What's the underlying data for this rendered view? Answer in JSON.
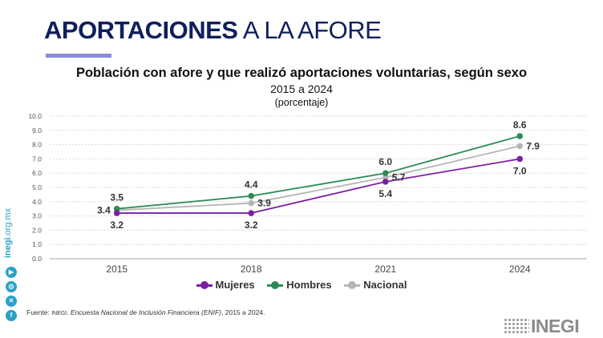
{
  "header": {
    "title_bold": "APORTACIONES",
    "title_rest": " A LA AFORE"
  },
  "chart_data": {
    "type": "line",
    "title": "Población con afore y que realizó aportaciones voluntarias, según sexo",
    "subtitle": "2015 a 2024",
    "unit": "(porcentaje)",
    "categories": [
      "2015",
      "2018",
      "2021",
      "2024"
    ],
    "ylim": [
      0,
      10
    ],
    "yticks": [
      "0.0",
      "1.0",
      "2.0",
      "3.0",
      "4.0",
      "5.0",
      "6.0",
      "7.0",
      "8.0",
      "9.0",
      "10.0"
    ],
    "grid": true,
    "legend_position": "bottom",
    "series": [
      {
        "name": "Mujeres",
        "color": "#7b1fa2",
        "values": [
          3.2,
          3.2,
          5.4,
          7.0
        ],
        "labels": [
          "3.2",
          "3.2",
          "5.4",
          "7.0"
        ],
        "label_pos": [
          "below",
          "below",
          "below",
          "below"
        ]
      },
      {
        "name": "Hombres",
        "color": "#2e8b57",
        "values": [
          3.5,
          4.4,
          6.0,
          8.6
        ],
        "labels": [
          "3.5",
          "4.4",
          "6.0",
          "8.6"
        ],
        "label_pos": [
          "above",
          "above",
          "above",
          "above"
        ]
      },
      {
        "name": "Nacional",
        "color": "#b5b5b5",
        "values": [
          3.4,
          3.9,
          5.7,
          7.9
        ],
        "labels": [
          "3.4",
          "3.9",
          "5.7",
          "7.9"
        ],
        "label_pos": [
          "left",
          "right",
          "right",
          "right"
        ]
      }
    ]
  },
  "footer": {
    "source_prefix": "Fuente: ",
    "source_org": "INEGI",
    "source_sep": ". ",
    "source_title": "Encuesta Nacional de Inclusión Financiera (ENIF)",
    "source_suffix": ", 2015 a 2024."
  },
  "sidebar": {
    "site_bold": "inegi",
    "site_rest": ".org.mx",
    "icons": [
      "youtube-icon",
      "instagram-icon",
      "x-icon",
      "facebook-icon"
    ],
    "icon_color": "#2aa1c7"
  },
  "logo": {
    "text": "INEGI"
  }
}
